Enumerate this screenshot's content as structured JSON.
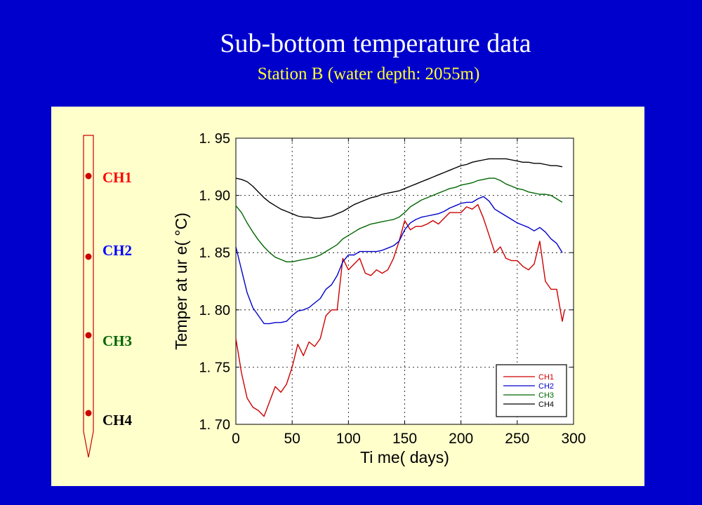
{
  "page": {
    "title": "Sub-bottom temperature data",
    "subtitle": "Station B (water depth: 2055m)"
  },
  "probe": {
    "channels": [
      {
        "label": "CH1",
        "color": "#ff0000"
      },
      {
        "label": "CH2",
        "color": "#0000ff"
      },
      {
        "label": "CH3",
        "color": "#006600"
      },
      {
        "label": "CH4",
        "color": "#000000"
      }
    ]
  },
  "chart_data": {
    "type": "line",
    "xlabel": "Ti me( days)",
    "ylabel": "Temper at ur e( °C)",
    "xlim": [
      0,
      300
    ],
    "ylim": [
      1.7,
      1.95
    ],
    "xticks": [
      0,
      50,
      100,
      150,
      200,
      250,
      300
    ],
    "xtick_labels": [
      "0",
      "50",
      "100",
      "150",
      "200",
      "250",
      "300"
    ],
    "yticks": [
      1.7,
      1.75,
      1.8,
      1.85,
      1.9,
      1.95
    ],
    "ytick_labels": [
      "1. 70",
      "1. 75",
      "1. 80",
      "1. 85",
      "1. 90",
      "1. 95"
    ],
    "grid": true,
    "legend_position": "bottom-right",
    "series": [
      {
        "name": "CH1",
        "color": "#cc0000",
        "x": [
          0,
          5,
          10,
          15,
          20,
          25,
          30,
          35,
          40,
          45,
          50,
          55,
          60,
          65,
          70,
          75,
          80,
          85,
          90,
          95,
          100,
          105,
          110,
          115,
          120,
          125,
          130,
          135,
          140,
          145,
          150,
          155,
          160,
          165,
          170,
          175,
          180,
          185,
          190,
          195,
          200,
          205,
          210,
          215,
          220,
          225,
          230,
          235,
          240,
          245,
          250,
          255,
          260,
          265,
          270,
          275,
          280,
          285,
          290,
          292
        ],
        "y": [
          1.775,
          1.745,
          1.723,
          1.715,
          1.712,
          1.707,
          1.72,
          1.733,
          1.728,
          1.735,
          1.75,
          1.77,
          1.76,
          1.772,
          1.768,
          1.775,
          1.795,
          1.8,
          1.8,
          1.845,
          1.835,
          1.84,
          1.845,
          1.832,
          1.83,
          1.835,
          1.832,
          1.835,
          1.845,
          1.86,
          1.878,
          1.87,
          1.873,
          1.873,
          1.875,
          1.878,
          1.875,
          1.88,
          1.885,
          1.885,
          1.885,
          1.89,
          1.888,
          1.892,
          1.88,
          1.865,
          1.85,
          1.855,
          1.845,
          1.843,
          1.843,
          1.838,
          1.835,
          1.84,
          1.86,
          1.825,
          1.818,
          1.818,
          1.79,
          1.8
        ]
      },
      {
        "name": "CH2",
        "color": "#0000cc",
        "x": [
          0,
          5,
          10,
          15,
          20,
          25,
          30,
          35,
          40,
          45,
          50,
          55,
          60,
          65,
          70,
          75,
          80,
          85,
          90,
          95,
          100,
          105,
          110,
          115,
          120,
          125,
          130,
          135,
          140,
          145,
          150,
          155,
          160,
          165,
          170,
          175,
          180,
          185,
          190,
          195,
          200,
          205,
          210,
          215,
          220,
          225,
          230,
          235,
          240,
          245,
          250,
          255,
          260,
          265,
          270,
          275,
          280,
          285,
          290
        ],
        "y": [
          1.855,
          1.835,
          1.815,
          1.802,
          1.795,
          1.788,
          1.788,
          1.789,
          1.789,
          1.79,
          1.795,
          1.799,
          1.8,
          1.802,
          1.806,
          1.81,
          1.818,
          1.822,
          1.83,
          1.842,
          1.848,
          1.848,
          1.851,
          1.851,
          1.851,
          1.851,
          1.852,
          1.854,
          1.856,
          1.86,
          1.87,
          1.876,
          1.879,
          1.881,
          1.882,
          1.883,
          1.884,
          1.886,
          1.889,
          1.891,
          1.893,
          1.894,
          1.894,
          1.897,
          1.899,
          1.895,
          1.888,
          1.885,
          1.882,
          1.879,
          1.876,
          1.874,
          1.872,
          1.869,
          1.872,
          1.868,
          1.862,
          1.858,
          1.85
        ]
      },
      {
        "name": "CH3",
        "color": "#006600",
        "x": [
          0,
          5,
          10,
          15,
          20,
          25,
          30,
          35,
          40,
          45,
          50,
          55,
          60,
          65,
          70,
          75,
          80,
          85,
          90,
          95,
          100,
          105,
          110,
          115,
          120,
          125,
          130,
          135,
          140,
          145,
          150,
          155,
          160,
          165,
          170,
          175,
          180,
          185,
          190,
          195,
          200,
          205,
          210,
          215,
          220,
          225,
          230,
          235,
          240,
          245,
          250,
          255,
          260,
          265,
          270,
          275,
          280,
          285,
          290
        ],
        "y": [
          1.891,
          1.885,
          1.876,
          1.868,
          1.861,
          1.855,
          1.85,
          1.846,
          1.844,
          1.842,
          1.842,
          1.843,
          1.844,
          1.845,
          1.846,
          1.848,
          1.851,
          1.854,
          1.857,
          1.862,
          1.865,
          1.868,
          1.871,
          1.873,
          1.875,
          1.876,
          1.877,
          1.878,
          1.879,
          1.881,
          1.885,
          1.89,
          1.893,
          1.896,
          1.898,
          1.9,
          1.902,
          1.904,
          1.906,
          1.907,
          1.909,
          1.91,
          1.911,
          1.913,
          1.914,
          1.915,
          1.915,
          1.913,
          1.91,
          1.908,
          1.906,
          1.905,
          1.903,
          1.902,
          1.901,
          1.901,
          1.9,
          1.897,
          1.894
        ]
      },
      {
        "name": "CH4",
        "color": "#000000",
        "x": [
          0,
          5,
          10,
          15,
          20,
          25,
          30,
          35,
          40,
          45,
          50,
          55,
          60,
          65,
          70,
          75,
          80,
          85,
          90,
          95,
          100,
          105,
          110,
          115,
          120,
          125,
          130,
          135,
          140,
          145,
          150,
          155,
          160,
          165,
          170,
          175,
          180,
          185,
          190,
          195,
          200,
          205,
          210,
          215,
          220,
          225,
          230,
          235,
          240,
          245,
          250,
          255,
          260,
          265,
          270,
          275,
          280,
          285,
          290
        ],
        "y": [
          1.915,
          1.914,
          1.912,
          1.908,
          1.903,
          1.898,
          1.894,
          1.891,
          1.888,
          1.886,
          1.884,
          1.882,
          1.881,
          1.881,
          1.88,
          1.88,
          1.881,
          1.882,
          1.884,
          1.886,
          1.889,
          1.892,
          1.894,
          1.896,
          1.898,
          1.899,
          1.901,
          1.902,
          1.903,
          1.904,
          1.906,
          1.908,
          1.91,
          1.912,
          1.914,
          1.916,
          1.918,
          1.92,
          1.922,
          1.924,
          1.926,
          1.927,
          1.929,
          1.93,
          1.931,
          1.932,
          1.932,
          1.932,
          1.932,
          1.931,
          1.93,
          1.929,
          1.929,
          1.928,
          1.928,
          1.927,
          1.926,
          1.926,
          1.925
        ]
      }
    ]
  }
}
